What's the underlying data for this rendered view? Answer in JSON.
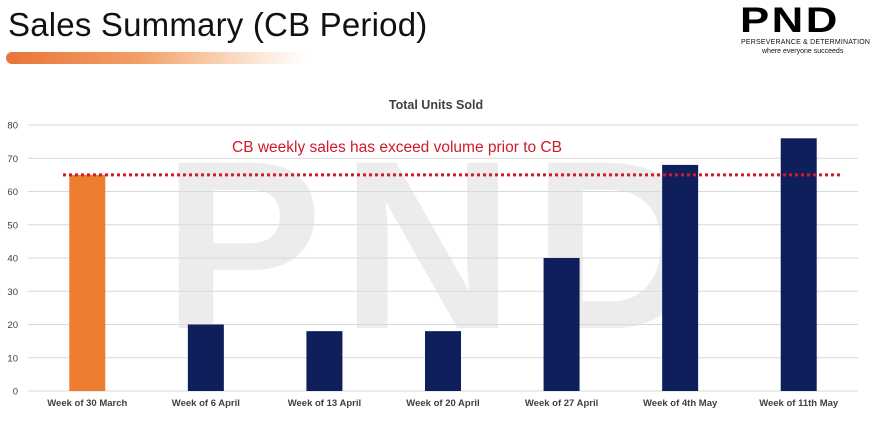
{
  "slide": {
    "title": "Sales Summary (CB Period)"
  },
  "logo": {
    "mark": "PND",
    "tagline_1": "PERSEVERANCE & DETERMINATION",
    "tagline_2": "where everyone succeeds",
    "watermark": "PND"
  },
  "colors": {
    "pre_cb_bar": "#ED7D31",
    "cb_bar": "#0F1F5C",
    "reference_line": "#D11A2A",
    "gridline": "#D9D9D9",
    "axis_text": "#404040"
  },
  "chart_data": {
    "type": "bar",
    "title": "Total Units Sold",
    "xlabel": "",
    "ylabel": "",
    "ylim": [
      0,
      80
    ],
    "yticks": [
      0,
      10,
      20,
      30,
      40,
      50,
      60,
      70,
      80
    ],
    "grid": true,
    "categories": [
      "Week of 30 March",
      "Week of 6 April",
      "Week of 13 April",
      "Week of 20 April",
      "Week of 27 April",
      "Week of 4th May",
      "Week of 11th May"
    ],
    "values": [
      65,
      20,
      18,
      18,
      40,
      68,
      76
    ],
    "bar_colors": [
      "#ED7D31",
      "#0F1F5C",
      "#0F1F5C",
      "#0F1F5C",
      "#0F1F5C",
      "#0F1F5C",
      "#0F1F5C"
    ],
    "reference_line": {
      "value": 65,
      "style": "dotted",
      "annotation": "CB weekly sales has exceed volume prior to CB"
    }
  }
}
